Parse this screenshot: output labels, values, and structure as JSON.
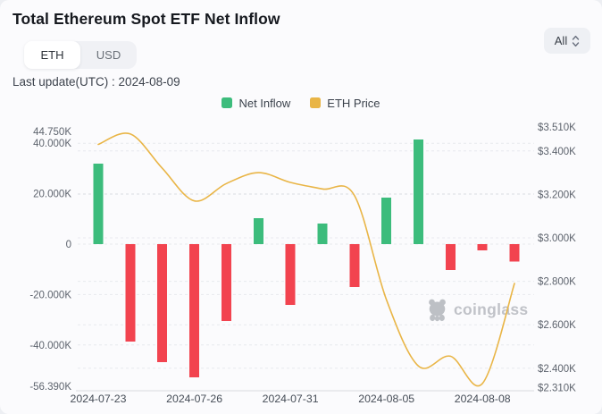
{
  "header": {
    "title": "Total Ethereum Spot ETF Net Inflow",
    "unit_toggle": {
      "options": [
        "ETH",
        "USD"
      ],
      "selected": "ETH"
    },
    "range_select": {
      "value": "All"
    },
    "last_update": "Last update(UTC) : 2024-08-09"
  },
  "legend": [
    {
      "label": "Net Inflow",
      "color": "#3CBC7C"
    },
    {
      "label": "ETH Price",
      "color": "#E9B546"
    }
  ],
  "watermark": "coinglass",
  "chart_data": {
    "type": "bar",
    "subtype": "bar+line dual axis",
    "title": "Total Ethereum Spot ETF Net Inflow",
    "categories": [
      "2024-07-23",
      "2024-07-24",
      "2024-07-25",
      "2024-07-26",
      "2024-07-29",
      "2024-07-30",
      "2024-07-31",
      "2024-08-01",
      "2024-08-02",
      "2024-08-05",
      "2024-08-06",
      "2024-08-07",
      "2024-08-08",
      "2024-08-09"
    ],
    "series": [
      {
        "name": "Net Inflow",
        "type": "bar",
        "axis": "left",
        "unit": "K ETH",
        "values": [
          31.9,
          -38.7,
          -46.8,
          -52.8,
          -30.5,
          10.3,
          -24.1,
          8.2,
          -17.0,
          18.4,
          41.5,
          -10.3,
          -2.5,
          -7.0
        ],
        "color_positive": "#3CBC7C",
        "color_negative": "#F2434F"
      },
      {
        "name": "ETH Price",
        "type": "line",
        "axis": "right",
        "unit": "USD",
        "values": [
          3430,
          3478,
          3320,
          3170,
          3250,
          3300,
          3255,
          3225,
          3195,
          2715,
          2410,
          2455,
          2330,
          2790
        ],
        "color": "#E9B546"
      }
    ],
    "left_axis": {
      "range": [
        -56.39,
        44.75
      ],
      "ticks": [
        {
          "label": "44.750K",
          "v": 44.75,
          "grid": false
        },
        {
          "label": "40.000K",
          "v": 40,
          "grid": true
        },
        {
          "label": "20.000K",
          "v": 20,
          "grid": true
        },
        {
          "label": "0",
          "v": 0,
          "grid": true
        },
        {
          "label": "-20.000K",
          "v": -20,
          "grid": true
        },
        {
          "label": "-40.000K",
          "v": -40,
          "grid": true
        },
        {
          "label": "-56.390K",
          "v": -56.39,
          "grid": false
        }
      ]
    },
    "right_axis": {
      "range": [
        2310,
        3510
      ],
      "ticks": [
        {
          "label": "$3.510K",
          "p": 3510,
          "grid": false
        },
        {
          "label": "$3.400K",
          "p": 3400,
          "grid": true
        },
        {
          "label": "$3.200K",
          "p": 3200,
          "grid": true
        },
        {
          "label": "$3.000K",
          "p": 3000,
          "grid": true
        },
        {
          "label": "$2.800K",
          "p": 2800,
          "grid": true
        },
        {
          "label": "$2.600K",
          "p": 2600,
          "grid": true
        },
        {
          "label": "$2.400K",
          "p": 2400,
          "grid": true
        },
        {
          "label": "$2.310K",
          "p": 2310,
          "grid": false
        }
      ]
    },
    "x_ticks": [
      {
        "label": "2024-07-23",
        "index": 0
      },
      {
        "label": "2024-07-26",
        "index": 3
      },
      {
        "label": "2024-07-31",
        "index": 6
      },
      {
        "label": "2024-08-05",
        "index": 9
      },
      {
        "label": "2024-08-08",
        "index": 12
      }
    ],
    "grid_on": true,
    "legend_position": "top-center"
  }
}
